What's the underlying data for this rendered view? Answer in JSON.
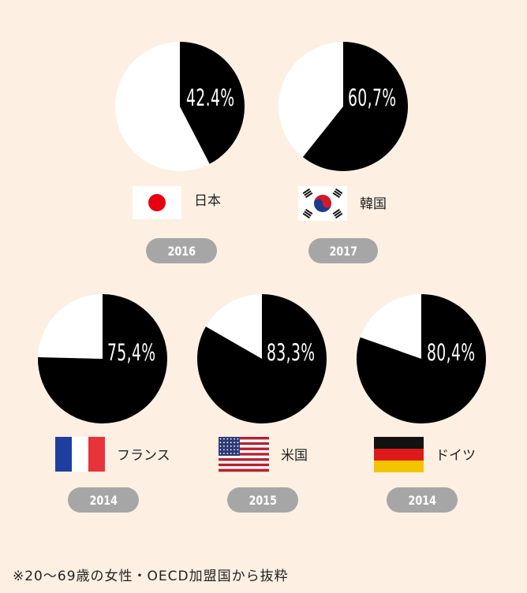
{
  "chart_data": {
    "type": "pie",
    "items": [
      {
        "country": "日本",
        "value": 42.4,
        "label": "42.4%",
        "year": "2016",
        "flag": "japan-flag"
      },
      {
        "country": "韓国",
        "value": 60.7,
        "label": "60,7%",
        "year": "2017",
        "flag": "korea-flag"
      },
      {
        "country": "フランス",
        "value": 75.4,
        "label": "75,4%",
        "year": "2014",
        "flag": "france-flag"
      },
      {
        "country": "米国",
        "value": 83.3,
        "label": "83,3%",
        "year": "2015",
        "flag": "usa-flag"
      },
      {
        "country": "ドイツ",
        "value": 80.4,
        "label": "80,4%",
        "year": "2014",
        "flag": "germany-flag"
      }
    ],
    "colors": {
      "filled": "#000000",
      "remainder": "#ffffff",
      "background": "#fdf0e3",
      "pill": "#a6a6a6"
    }
  },
  "footnote": "※20〜69歳の女性・OECD加盟国から抜粋"
}
